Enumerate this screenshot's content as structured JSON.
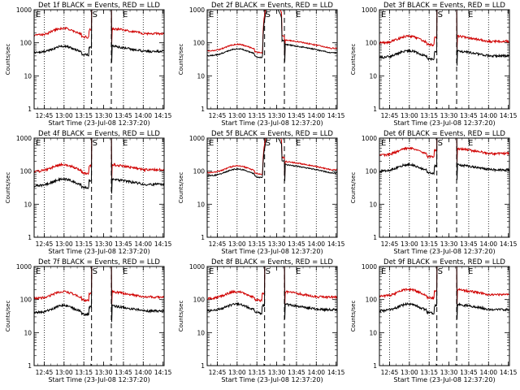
{
  "chart_data": [
    {
      "type": "line",
      "title": "Det 1f BLACK = Events, RED = LLD",
      "ylabel": "Counts/sec",
      "xlabel": "Start Time (23-Jul-08 12:37:20)",
      "yscale": "log",
      "ylim": [
        1,
        1000
      ],
      "yticks": [
        "1",
        "10",
        "100",
        "1000"
      ],
      "xticks": [
        "12:45",
        "13:00",
        "13:15",
        "13:30",
        "13:45",
        "14:00",
        "14:15"
      ],
      "markers": {
        "left": "E",
        "start": "S",
        "end": "E"
      },
      "series": [
        {
          "name": "Events",
          "color": "#000000",
          "profile": "A",
          "base": 55,
          "peak": 10000
        },
        {
          "name": "LLD",
          "color": "#d00000",
          "profile": "A",
          "base": 190,
          "peak": 10000
        }
      ]
    },
    {
      "type": "line",
      "title": "Det 2f BLACK = Events, RED = LLD",
      "ylabel": "Counts/sec",
      "xlabel": "Start Time (23-Jul-08 12:37:20)",
      "yscale": "log",
      "ylim": [
        1,
        1000
      ],
      "yticks": [
        "1",
        "10",
        "100",
        "1000"
      ],
      "xticks": [
        "12:45",
        "13:00",
        "13:15",
        "13:30",
        "13:45",
        "14:00",
        "14:15"
      ],
      "markers": {
        "left": "E",
        "start": "S",
        "end": "E"
      },
      "series": [
        {
          "name": "Events",
          "color": "#000000",
          "profile": "B",
          "base": 45,
          "peak": 1400
        },
        {
          "name": "LLD",
          "color": "#d00000",
          "profile": "B",
          "base": 62,
          "peak": 2000
        }
      ]
    },
    {
      "type": "line",
      "title": "Det 3f BLACK = Events, RED = LLD",
      "ylabel": "Counts/sec",
      "xlabel": "Start Time (23-Jul-08 12:37:20)",
      "yscale": "log",
      "ylim": [
        1,
        1000
      ],
      "yticks": [
        "1",
        "10",
        "100",
        "1000"
      ],
      "xticks": [
        "12:45",
        "13:00",
        "13:15",
        "13:30",
        "13:45",
        "14:00",
        "14:15"
      ],
      "markers": {
        "left": "E",
        "start": "S",
        "end": "E"
      },
      "series": [
        {
          "name": "Events",
          "color": "#000000",
          "profile": "A",
          "base": 40,
          "peak": 10000
        },
        {
          "name": "LLD",
          "color": "#d00000",
          "profile": "A",
          "base": 110,
          "peak": 10000
        }
      ]
    },
    {
      "type": "line",
      "title": "Det 4f BLACK = Events, RED = LLD",
      "ylabel": "Counts/sec",
      "xlabel": "Start Time (23-Jul-08 12:37:20)",
      "yscale": "log",
      "ylim": [
        1,
        1000
      ],
      "yticks": [
        "1",
        "10",
        "100",
        "1000"
      ],
      "xticks": [
        "12:45",
        "13:00",
        "13:15",
        "13:30",
        "13:45",
        "14:00",
        "14:15"
      ],
      "markers": {
        "left": "E",
        "start": "S",
        "end": "E"
      },
      "series": [
        {
          "name": "Events",
          "color": "#000000",
          "profile": "A",
          "base": 40,
          "peak": 10000
        },
        {
          "name": "LLD",
          "color": "#d00000",
          "profile": "A",
          "base": 110,
          "peak": 10000
        }
      ]
    },
    {
      "type": "line",
      "title": "Det 5f BLACK = Events, RED = LLD",
      "ylabel": "Counts/sec",
      "xlabel": "Start Time (23-Jul-08 12:37:20)",
      "yscale": "log",
      "ylim": [
        1,
        1000
      ],
      "yticks": [
        "1",
        "10",
        "100",
        "1000"
      ],
      "xticks": [
        "12:45",
        "13:00",
        "13:15",
        "13:30",
        "13:45",
        "14:00",
        "14:15"
      ],
      "markers": {
        "left": "E",
        "start": "S",
        "end": "E"
      },
      "series": [
        {
          "name": "Events",
          "color": "#000000",
          "profile": "B",
          "base": 80,
          "peak": 1300
        },
        {
          "name": "LLD",
          "color": "#d00000",
          "profile": "B",
          "base": 100,
          "peak": 1800
        }
      ]
    },
    {
      "type": "line",
      "title": "Det 6f BLACK = Events, RED = LLD",
      "ylabel": "Counts/sec",
      "xlabel": "Start Time (23-Jul-08 12:37:20)",
      "yscale": "log",
      "ylim": [
        1,
        1000
      ],
      "yticks": [
        "1",
        "10",
        "100",
        "1000"
      ],
      "xticks": [
        "12:45",
        "13:00",
        "13:15",
        "13:30",
        "13:45",
        "14:00",
        "14:15"
      ],
      "markers": {
        "left": "E",
        "start": "S",
        "end": "E"
      },
      "series": [
        {
          "name": "Events",
          "color": "#000000",
          "profile": "A",
          "base": 110,
          "peak": 10000
        },
        {
          "name": "LLD",
          "color": "#d00000",
          "profile": "A",
          "base": 340,
          "peak": 10000
        }
      ]
    },
    {
      "type": "line",
      "title": "Det 7f BLACK = Events, RED = LLD",
      "ylabel": "Counts/sec",
      "xlabel": "Start Time (23-Jul-08 12:37:20)",
      "yscale": "log",
      "ylim": [
        1,
        1000
      ],
      "yticks": [
        "1",
        "10",
        "100",
        "1000"
      ],
      "xticks": [
        "12:45",
        "13:00",
        "13:15",
        "13:30",
        "13:45",
        "14:00",
        "14:15"
      ],
      "markers": {
        "left": "E",
        "start": "S",
        "end": "E"
      },
      "series": [
        {
          "name": "Events",
          "color": "#000000",
          "profile": "A",
          "base": 45,
          "peak": 10000
        },
        {
          "name": "LLD",
          "color": "#d00000",
          "profile": "A",
          "base": 120,
          "peak": 10000
        }
      ]
    },
    {
      "type": "line",
      "title": "Det 8f BLACK = Events, RED = LLD",
      "ylabel": "Counts/sec",
      "xlabel": "Start Time (23-Jul-08 12:37:20)",
      "yscale": "log",
      "ylim": [
        1,
        1000
      ],
      "yticks": [
        "1",
        "10",
        "100",
        "1000"
      ],
      "xticks": [
        "12:45",
        "13:00",
        "13:15",
        "13:30",
        "13:45",
        "14:00",
        "14:15"
      ],
      "markers": {
        "left": "E",
        "start": "S",
        "end": "E"
      },
      "series": [
        {
          "name": "Events",
          "color": "#000000",
          "profile": "A",
          "base": 50,
          "peak": 10000
        },
        {
          "name": "LLD",
          "color": "#d00000",
          "profile": "A",
          "base": 120,
          "peak": 10000
        }
      ]
    },
    {
      "type": "line",
      "title": "Det 9f BLACK = Events, RED = LLD",
      "ylabel": "Counts/sec",
      "xlabel": "Start Time (23-Jul-08 12:37:20)",
      "yscale": "log",
      "ylim": [
        1,
        1000
      ],
      "yticks": [
        "1",
        "10",
        "100",
        "1000"
      ],
      "xticks": [
        "12:45",
        "13:00",
        "13:15",
        "13:30",
        "13:45",
        "14:00",
        "14:15"
      ],
      "markers": {
        "left": "E",
        "start": "S",
        "end": "E"
      },
      "series": [
        {
          "name": "Events",
          "color": "#000000",
          "profile": "A",
          "base": 50,
          "peak": 10000
        },
        {
          "name": "LLD",
          "color": "#d00000",
          "profile": "A",
          "base": 140,
          "peak": 10000
        }
      ]
    }
  ]
}
